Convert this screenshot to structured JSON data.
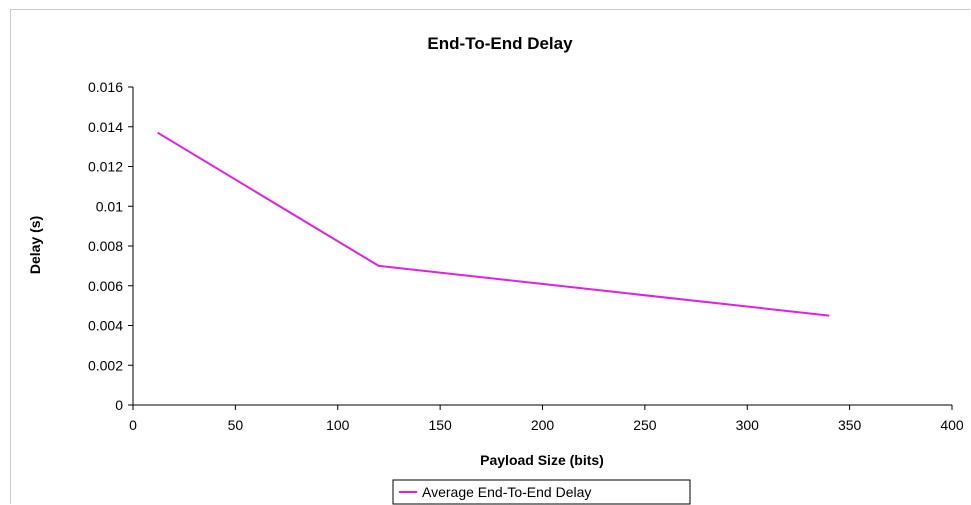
{
  "chart_data": {
    "type": "line",
    "title": "End-To-End Delay",
    "xlabel": "Payload Size (bits)",
    "ylabel": "Delay (s)",
    "xlim": [
      0,
      400
    ],
    "ylim": [
      0,
      0.016
    ],
    "x_ticks": [
      "0",
      "50",
      "100",
      "150",
      "200",
      "250",
      "300",
      "350",
      "400"
    ],
    "y_ticks": [
      "0",
      "0.002",
      "0.004",
      "0.006",
      "0.008",
      "0.01",
      "0.012",
      "0.014",
      "0.016"
    ],
    "grid": false,
    "legend_position": "bottom",
    "series": [
      {
        "name": "Average End-To-End Delay",
        "color": "#e020e0",
        "x": [
          12,
          120,
          340
        ],
        "y": [
          0.0137,
          0.007,
          0.0045
        ]
      }
    ]
  }
}
